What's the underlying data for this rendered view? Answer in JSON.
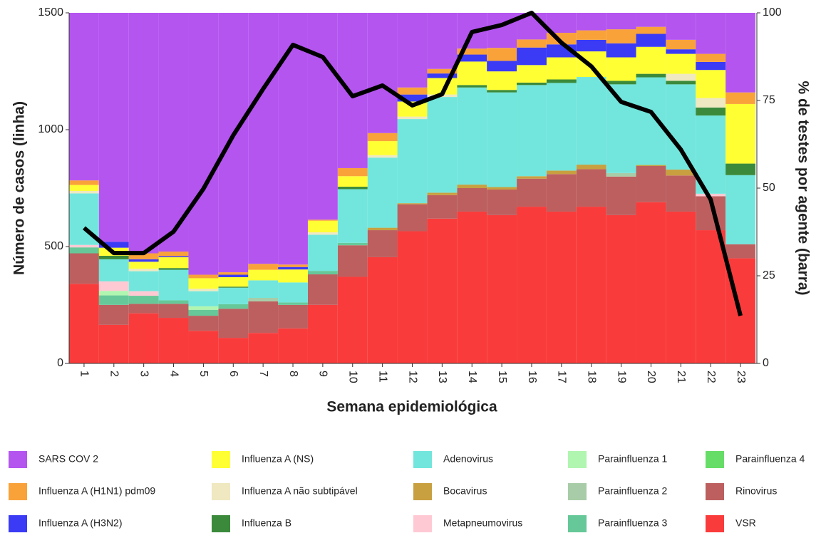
{
  "chart_data": {
    "type": "bar",
    "stacked": true,
    "xlabel": "Semana epidemiológica",
    "ylabel": "Número de casos (linha)",
    "y2label": "% de testes por agente (barra)",
    "categories": [
      "1",
      "2",
      "3",
      "4",
      "5",
      "6",
      "7",
      "8",
      "9",
      "10",
      "11",
      "12",
      "13",
      "14",
      "15",
      "16",
      "17",
      "18",
      "19",
      "20",
      "21",
      "22",
      "23"
    ],
    "ylim": [
      0,
      1500
    ],
    "yticks": [
      0,
      500,
      1000,
      1500
    ],
    "y2lim": [
      0,
      100
    ],
    "y2ticks": [
      0,
      25,
      50,
      75,
      100
    ],
    "series": [
      {
        "name": "SARS COV 2",
        "color": "#b455f0",
        "axis": "y2",
        "values": [
          47.8,
          65.3,
          68.6,
          68.1,
          74.7,
          74,
          71.6,
          71.8,
          59,
          44.3,
          34.3,
          21.3,
          16,
          10.2,
          10,
          7.6,
          5.7,
          5,
          4.7,
          4,
          7.7,
          11.7,
          22.7
        ]
      },
      {
        "name": "Influenza A (H1N1) pdm09",
        "color": "#f9a23a",
        "axis": "y2",
        "values": [
          1.3,
          0,
          1.7,
          1.3,
          1,
          0.7,
          1.7,
          0.7,
          0.3,
          2.3,
          2.3,
          2,
          1.3,
          1.7,
          3.7,
          2.3,
          3.3,
          2.7,
          4,
          2,
          2.7,
          2.3,
          3.3
        ]
      },
      {
        "name": "Influenza A (H3N2)",
        "color": "#3b3bf5",
        "axis": "y2",
        "values": [
          0,
          1.7,
          0.7,
          0.3,
          0,
          0.7,
          0,
          0.7,
          0,
          0,
          0,
          2,
          1.3,
          2,
          3,
          5,
          3.7,
          3.3,
          4,
          3.7,
          1.3,
          2.3,
          0
        ]
      },
      {
        "name": "Influenza A (NS)",
        "color": "#ffff33",
        "axis": "y2",
        "values": [
          1.7,
          2.3,
          2,
          3.1,
          3,
          2.7,
          3,
          3.7,
          3.3,
          3,
          4,
          4.3,
          4.7,
          6.7,
          5.3,
          5,
          6.3,
          7.3,
          6.7,
          7.7,
          5.7,
          8,
          17
        ]
      },
      {
        "name": "Influenza A não subtipável",
        "color": "#efe8c0",
        "axis": "y2",
        "values": [
          0.7,
          0,
          0.7,
          0,
          0.7,
          0,
          0,
          0,
          0.7,
          0,
          0.7,
          0.7,
          0.7,
          0,
          0,
          0,
          0,
          0,
          0,
          0,
          2,
          2.7,
          0
        ]
      },
      {
        "name": "Influenza B",
        "color": "#3b8a3b",
        "axis": "y2",
        "values": [
          0,
          1,
          0,
          0.5,
          0,
          0.3,
          0,
          0,
          0,
          0.7,
          0,
          0,
          0,
          0.7,
          0.7,
          0.7,
          1,
          0,
          1,
          1,
          1,
          2.3,
          3.3
        ]
      },
      {
        "name": "Adenovirus",
        "color": "#72e6dc",
        "axis": "y2",
        "values": [
          14.7,
          6.3,
          5.7,
          8.7,
          4.3,
          4.7,
          5,
          5.7,
          10.3,
          15.3,
          20,
          24,
          27.3,
          27.7,
          27,
          26,
          25,
          25,
          25.3,
          25,
          24.3,
          22.3,
          19.7
        ]
      },
      {
        "name": "Bocavirus",
        "color": "#c8a040",
        "axis": "y2",
        "values": [
          0,
          0,
          0,
          0,
          0,
          0,
          0,
          0,
          0,
          0,
          0.7,
          0.3,
          0.7,
          1,
          0.7,
          0.7,
          1,
          1.3,
          0,
          0.3,
          1.7,
          0,
          0
        ]
      },
      {
        "name": "Metapneumovirus",
        "color": "#ffc9d3",
        "axis": "y2",
        "values": [
          0.7,
          2.7,
          1.3,
          0,
          0,
          0,
          0,
          0,
          0,
          0,
          0,
          0,
          0,
          0,
          0,
          0,
          0,
          0,
          0,
          0,
          0,
          0.7,
          0
        ]
      },
      {
        "name": "Parainfluenza 1",
        "color": "#b0f5b0",
        "axis": "y2",
        "values": [
          0,
          1.3,
          0,
          0,
          1,
          0,
          0,
          0,
          0,
          0,
          0,
          0,
          0,
          0,
          0,
          0,
          0,
          0,
          0,
          0,
          0,
          0,
          0
        ]
      },
      {
        "name": "Parainfluenza 2",
        "color": "#a8cca8",
        "axis": "y2",
        "values": [
          0,
          0,
          0,
          0,
          0,
          0,
          1,
          0,
          0,
          0,
          0,
          0,
          0,
          0,
          0,
          0,
          0,
          0,
          1,
          0,
          0,
          0,
          0
        ]
      },
      {
        "name": "Parainfluenza 3",
        "color": "#66c898",
        "axis": "y2",
        "values": [
          1.7,
          2.7,
          2.3,
          1,
          1.7,
          1.3,
          0,
          0.7,
          1,
          0.7,
          0,
          0,
          0,
          0,
          0,
          0,
          0,
          0,
          0,
          0,
          0,
          0,
          0
        ]
      },
      {
        "name": "Parainfluenza 4",
        "color": "#66dd66",
        "axis": "y2",
        "values": [
          0,
          0,
          0,
          0,
          0,
          0,
          0,
          0,
          0,
          0,
          0,
          0,
          0,
          0,
          0,
          0,
          0,
          0,
          0,
          0,
          0,
          0,
          0
        ]
      },
      {
        "name": "Rinovirus",
        "color": "#bd5f5f",
        "axis": "y2",
        "values": [
          8.7,
          5.7,
          2.7,
          4,
          4.3,
          8.3,
          9,
          6.7,
          8.7,
          9,
          7.7,
          7.7,
          6.7,
          6.7,
          7.3,
          8,
          10.7,
          10.7,
          11,
          10.3,
          10.3,
          9.7,
          4
        ]
      },
      {
        "name": "VSR",
        "color": "#fa3b3b",
        "axis": "y2",
        "values": [
          22.7,
          11,
          14.3,
          13,
          9.3,
          7.3,
          8.7,
          10,
          16.7,
          24.7,
          30.3,
          37.7,
          41.3,
          43.3,
          42.3,
          44.7,
          43.3,
          44.7,
          42.3,
          46,
          43.3,
          38,
          30
        ]
      }
    ],
    "line": {
      "type": "line",
      "color": "#000000",
      "values": [
        580,
        472,
        472,
        564,
        747,
        976,
        1174,
        1363,
        1311,
        1143,
        1189,
        1104,
        1152,
        1418,
        1448,
        1500,
        1372,
        1271,
        1119,
        1076,
        915,
        701,
        204
      ]
    }
  }
}
